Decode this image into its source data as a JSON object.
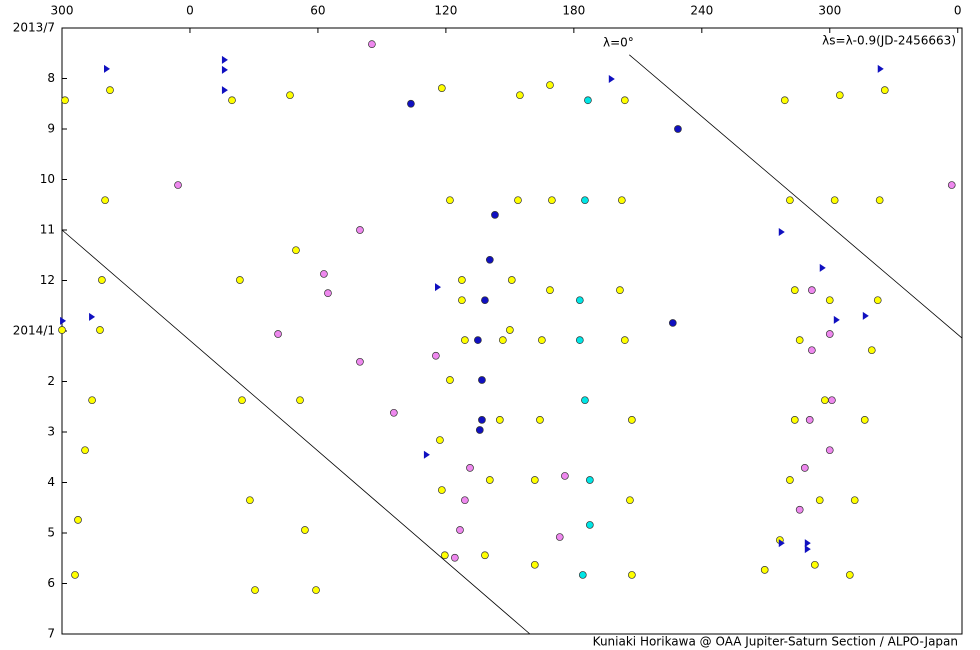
{
  "chart_data": {
    "type": "scatter",
    "annotations": [
      "λ=0°",
      "λs=λ-0.9(JD-2456663)"
    ],
    "footer": "Kuniaki Horikawa @ OAA Jupiter-Saturn Section / ALPO-Japan",
    "xlim": [
      -60,
      362
    ],
    "xticks": [
      {
        "value": -60,
        "label": "300"
      },
      0,
      60,
      120,
      180,
      240,
      {
        "value": 300,
        "label": "300"
      },
      {
        "value": 360,
        "label": "0"
      }
    ],
    "ylim": [
      0,
      12
    ],
    "yticks": [
      {
        "value": 0,
        "label": "2013/7"
      },
      {
        "value": 1,
        "label": "8"
      },
      {
        "value": 2,
        "label": "9"
      },
      {
        "value": 3,
        "label": "10"
      },
      {
        "value": 4,
        "label": "11"
      },
      {
        "value": 5,
        "label": "12"
      },
      {
        "value": 6,
        "label": "2014/1"
      },
      {
        "value": 7,
        "label": "2"
      },
      {
        "value": 8,
        "label": "3"
      },
      {
        "value": 9,
        "label": "4"
      },
      {
        "value": 10,
        "label": "5"
      },
      {
        "value": 11,
        "label": "6"
      },
      {
        "value": 12,
        "label": "7"
      }
    ],
    "reference_lines": [
      {
        "x": [
          -60,
          159.4
        ],
        "y": [
          4.0,
          12
        ]
      },
      {
        "x": [
          206,
          362
        ],
        "y": [
          0.53,
          6.14
        ]
      }
    ],
    "series": [
      {
        "color": "#ffff00",
        "marker": "circle",
        "x": [
          -58.6,
          -60,
          -37.5,
          -39.8,
          -41.3,
          -42.2,
          -45.9,
          -49.2,
          -52.5,
          -53.9,
          19.7,
          23.4,
          24.4,
          28.1,
          30.5,
          46.9,
          49.7,
          51.6,
          53.9,
          59.1,
          118.1,
          121.9,
          127.5,
          127.5,
          128.9,
          121.9,
          117.2,
          118.1,
          119.5,
          154.7,
          153.8,
          150.9,
          150,
          146.7,
          145.3,
          140.6,
          138.3,
          168.8,
          169.7,
          168.8,
          165,
          164.1,
          161.7,
          161.7,
          203.9,
          202.5,
          201.6,
          203.9,
          207.2,
          206.3,
          207.2,
          278.9,
          281.3,
          283.6,
          285.9,
          283.6,
          281.3,
          276.6,
          269.5,
          304.7,
          302.3,
          300,
          297.7,
          295.3,
          293,
          325.8,
          323.4,
          322.5,
          319.7,
          316.4,
          311.7,
          309.4
        ],
        "y": [
          1.43,
          5.98,
          1.23,
          3.41,
          4.99,
          5.98,
          7.37,
          8.36,
          9.74,
          10.83,
          1.43,
          4.99,
          7.37,
          9.35,
          11.13,
          1.33,
          4.4,
          7.37,
          9.94,
          11.13,
          1.19,
          3.41,
          4.99,
          5.39,
          6.18,
          6.97,
          8.16,
          9.15,
          10.44,
          1.33,
          3.41,
          4.99,
          5.98,
          6.18,
          7.76,
          8.95,
          10.44,
          1.13,
          3.41,
          5.19,
          6.18,
          7.76,
          8.95,
          10.63,
          1.43,
          3.41,
          5.19,
          6.18,
          7.76,
          9.35,
          10.83,
          1.43,
          3.41,
          5.19,
          6.18,
          7.76,
          8.95,
          10.14,
          10.73,
          1.33,
          3.41,
          5.39,
          7.37,
          9.35,
          10.63,
          1.23,
          3.41,
          5.39,
          6.38,
          7.76,
          9.35,
          10.83
        ]
      },
      {
        "color": "#00e5e5",
        "marker": "circle",
        "x": [
          186.6,
          185.2,
          182.8,
          182.8,
          185.2,
          187.5,
          187.5,
          184.2
        ],
        "y": [
          1.43,
          3.41,
          5.39,
          6.18,
          7.37,
          8.95,
          9.84,
          10.83
        ]
      },
      {
        "color": "#1010c0",
        "marker": "circle",
        "x": [
          143,
          140.6,
          138.3,
          135,
          136.9,
          136.9,
          135.9,
          103.6,
          228.8,
          226.4
        ],
        "y": [
          3.7,
          4.59,
          5.39,
          6.18,
          6.97,
          7.76,
          7.96,
          1.5,
          2.0,
          5.84
        ]
      },
      {
        "color": "#ee88ee",
        "marker": "circle",
        "x": [
          85.3,
          -5.6,
          79.7,
          62.8,
          64.7,
          41.3,
          79.7,
          95.6,
          115.3,
          357.2,
          175.8,
          173.4,
          131.3,
          128.9,
          126.6,
          124.2,
          291.6,
          291.6,
          290.6,
          288.3,
          285.9,
          300,
          301,
          300
        ],
        "y": [
          0.32,
          3.11,
          4.0,
          4.87,
          5.25,
          6.06,
          6.61,
          7.62,
          6.49,
          3.11,
          8.87,
          10.08,
          8.71,
          9.35,
          9.94,
          10.49,
          5.19,
          6.38,
          7.76,
          8.71,
          9.54,
          6.06,
          7.37,
          8.36
        ]
      },
      {
        "color": "#1010c0",
        "marker": "triangle",
        "x": [
          -38.9,
          16.4,
          16.4,
          16.4,
          197.8,
          323.9,
          -59.5,
          -45.9,
          116.3,
          111.1,
          277.5,
          296.7,
          303.3,
          316.9,
          277.5,
          289.7,
          289.7
        ],
        "y": [
          0.81,
          0.63,
          0.83,
          1.23,
          1.01,
          0.81,
          5.8,
          5.72,
          5.13,
          8.45,
          4.04,
          4.75,
          5.78,
          5.7,
          10.2,
          10.2,
          10.32
        ]
      }
    ]
  }
}
